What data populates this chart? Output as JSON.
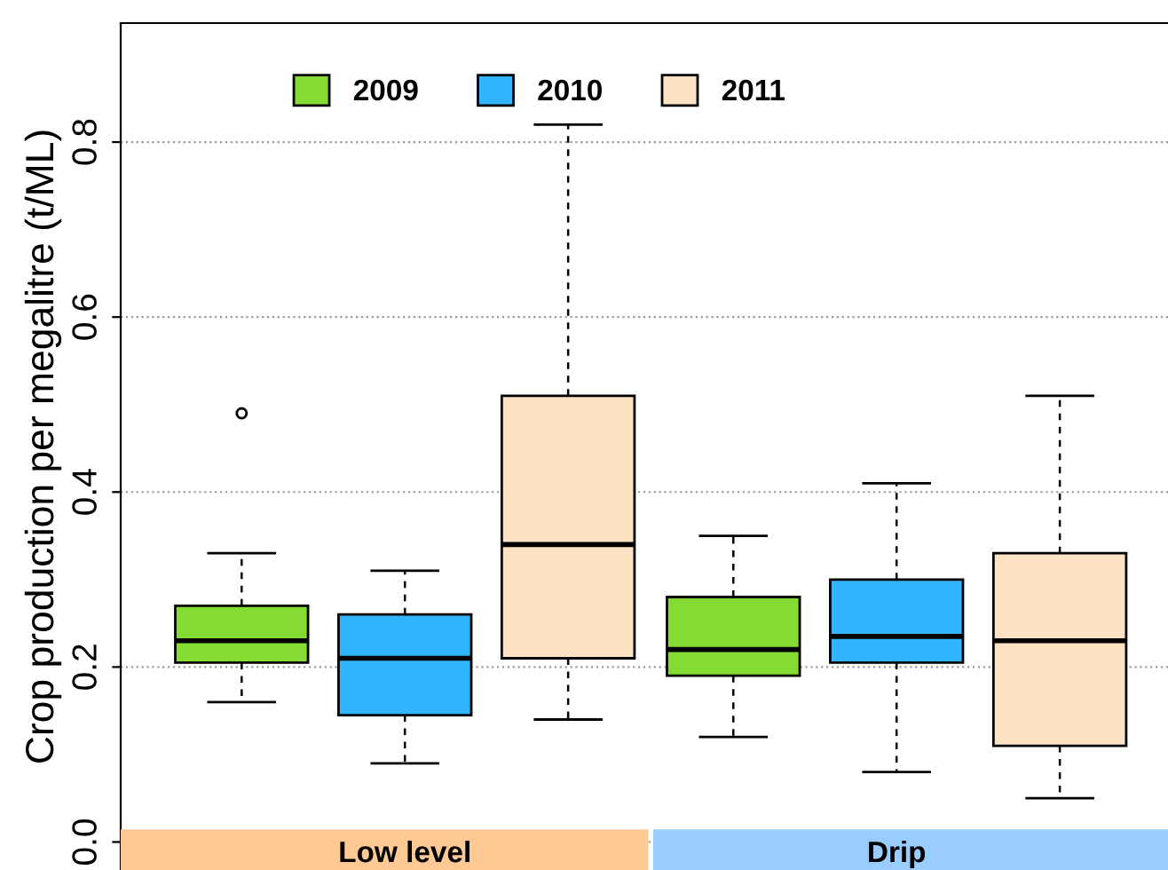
{
  "chart_data": {
    "type": "box",
    "ylabel": "Crop production per megalitre (t/ML)",
    "categories": [
      "Low level",
      "Drip"
    ],
    "series": [
      {
        "name": "2009",
        "color": "#84dc32",
        "boxes": [
          {
            "low": 0.16,
            "q1": 0.205,
            "median": 0.23,
            "q3": 0.27,
            "high": 0.33,
            "outliers": [
              0.49
            ]
          },
          {
            "low": 0.12,
            "q1": 0.19,
            "median": 0.22,
            "q3": 0.28,
            "high": 0.35
          }
        ]
      },
      {
        "name": "2010",
        "color": "#33b4ff",
        "boxes": [
          {
            "low": 0.09,
            "q1": 0.145,
            "median": 0.21,
            "q3": 0.26,
            "high": 0.31
          },
          {
            "low": 0.08,
            "q1": 0.205,
            "median": 0.235,
            "q3": 0.3,
            "high": 0.41
          }
        ]
      },
      {
        "name": "2011",
        "color": "#fde3c4",
        "boxes": [
          {
            "low": 0.14,
            "q1": 0.21,
            "median": 0.34,
            "q3": 0.51,
            "high": 0.82
          },
          {
            "low": 0.05,
            "q1": 0.11,
            "median": 0.23,
            "q3": 0.33,
            "high": 0.51
          }
        ]
      }
    ],
    "ylim": [
      -0.032,
      0.936
    ],
    "yticks": [
      {
        "value": 0,
        "label": "0.0"
      },
      {
        "value": 0.2,
        "label": "0.2"
      },
      {
        "value": 0.4,
        "label": "0.4"
      },
      {
        "value": 0.6,
        "label": "0.6"
      },
      {
        "value": 0.8,
        "label": "0.8"
      }
    ],
    "grid": "y",
    "legend": "top"
  }
}
